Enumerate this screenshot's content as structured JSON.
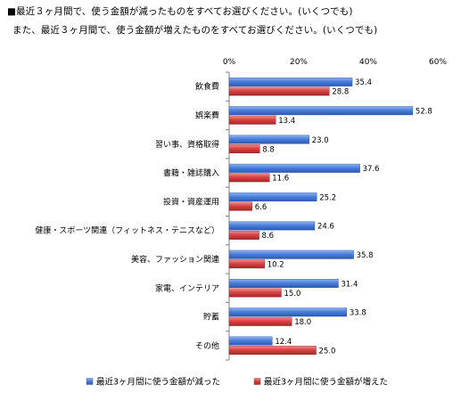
{
  "chart_data": {
    "type": "bar",
    "orientation": "horizontal",
    "title": "■最近３ヶ月間で、使う金額が減ったものをすべてお選びください。(いくつでも)",
    "subtitle": "また、最近３ヶ月間で、使う金額が増えたものをすべてお選びください。(いくつでも)",
    "xticks": [
      "0%",
      "20%",
      "40%",
      "60%"
    ],
    "xlim": [
      0,
      60
    ],
    "grid": false,
    "legend_position": "bottom",
    "categories": [
      "飲食費",
      "娯楽費",
      "習い事、資格取得",
      "書籍・雑誌購入",
      "投資・資産運用",
      "健康・スポーツ関連（フィットネス・テニスなど）",
      "美容、ファッション関連",
      "家電、インテリア",
      "貯蓄",
      "その他"
    ],
    "series": [
      {
        "name": "最近3ヶ月間に使う金額が減った",
        "color": "#3c6fd0",
        "values": [
          35.4,
          52.8,
          23.0,
          37.6,
          25.2,
          24.6,
          35.8,
          31.4,
          33.8,
          12.4
        ],
        "labels": [
          "35.4",
          "52.8",
          "23.0",
          "37.6",
          "25.2",
          "24.6",
          "35.8",
          "31.4",
          "33.8",
          "12.4"
        ]
      },
      {
        "name": "最近3ヶ月間に使う金額が増えた",
        "color": "#d23c3c",
        "values": [
          28.8,
          13.4,
          8.8,
          11.6,
          6.6,
          8.6,
          10.2,
          15.0,
          18.0,
          25.0
        ],
        "labels": [
          "28.8",
          "13.4",
          "8.8",
          "11.6",
          "6.6",
          "8.6",
          "10.2",
          "15.0",
          "18.0",
          "25.0"
        ]
      }
    ]
  }
}
